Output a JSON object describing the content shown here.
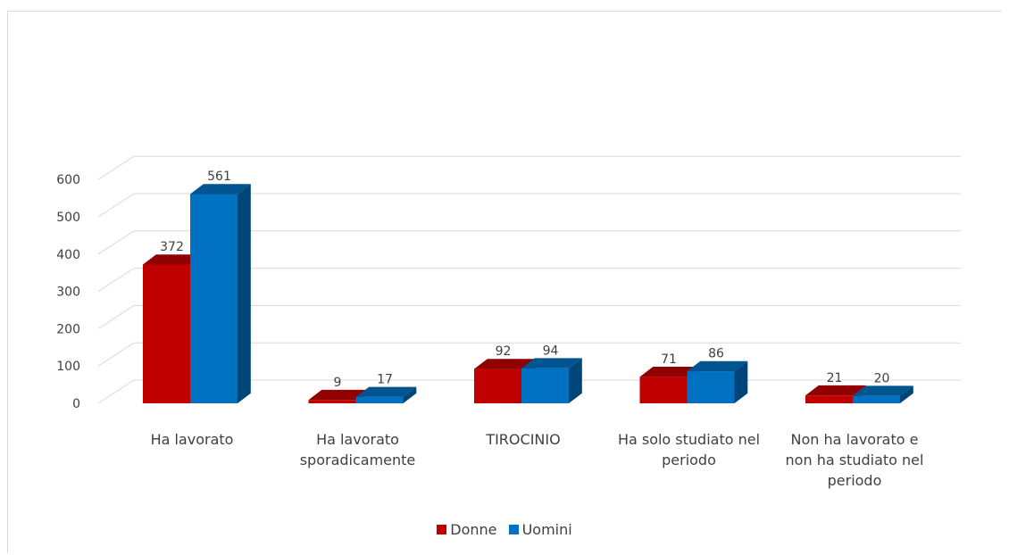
{
  "chart_data": {
    "type": "bar",
    "style": "3d-clustered-column",
    "categories": [
      [
        "Ha lavorato"
      ],
      [
        "Ha lavorato",
        "sporadicamente"
      ],
      [
        "TIROCINIO"
      ],
      [
        "Ha solo studiato nel",
        "periodo"
      ],
      [
        "Non ha lavorato e",
        "non ha studiato nel",
        "periodo"
      ]
    ],
    "series": [
      {
        "name": "Donne",
        "values": [
          372,
          9,
          92,
          71,
          21
        ],
        "color": "#c00000"
      },
      {
        "name": "Uomini",
        "values": [
          561,
          17,
          94,
          86,
          20
        ],
        "color": "#0070c0"
      }
    ],
    "yticks": [
      0,
      100,
      200,
      300,
      400,
      500,
      600
    ],
    "ylim": [
      0,
      600
    ],
    "grid": true,
    "legend": "bottom",
    "data_labels": true
  }
}
